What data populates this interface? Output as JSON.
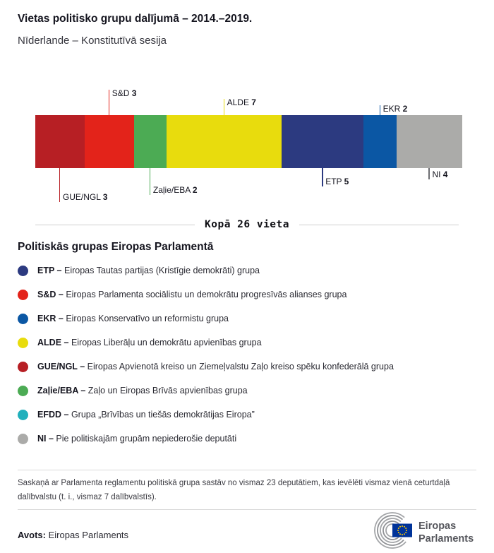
{
  "header": {
    "title": "Vietas politisko grupu dalījumā – 2014.–2019.",
    "subtitle": "Nīderlande – Konstitutīvā sesija"
  },
  "chart_data": {
    "type": "bar",
    "subtype": "horizontal-stacked-seats",
    "title": "Vietas politisko grupu dalījumā – 2014.–2019.",
    "total_seats": 26,
    "total_label": "Kopā 26 vieta",
    "segments": [
      {
        "group": "GUE/NGL",
        "seats": 3,
        "color": "#b71f24",
        "callout": "below"
      },
      {
        "group": "S&D",
        "seats": 3,
        "color": "#e3231a",
        "callout": "above"
      },
      {
        "group": "Zaļie/EBA",
        "seats": 2,
        "color": "#4cab54",
        "callout": "below"
      },
      {
        "group": "ALDE",
        "seats": 7,
        "color": "#e8dc0d",
        "callout": "above"
      },
      {
        "group": "ETP",
        "seats": 5,
        "color": "#2c3a80",
        "callout": "below"
      },
      {
        "group": "EKR",
        "seats": 2,
        "color": "#0b57a4",
        "callout": "above"
      },
      {
        "group": "NI",
        "seats": 4,
        "color": "#ababa9",
        "callout": "below"
      }
    ]
  },
  "legend": {
    "heading": "Politiskās grupas Eiropas Parlamentā",
    "items": [
      {
        "abbr": "ETP –",
        "description": "Eiropas Tautas partijas (Kristīgie demokrāti) grupa",
        "color": "#2c3a80"
      },
      {
        "abbr": "S&D –",
        "description": "Eiropas Parlamenta sociālistu un demokrātu progresīvās alianses grupa",
        "color": "#e3231a"
      },
      {
        "abbr": "EKR –",
        "description": "Eiropas Konservatīvo un reformistu grupa",
        "color": "#0b57a4"
      },
      {
        "abbr": "ALDE –",
        "description": "Eiropas Liberāļu un demokrātu apvienības grupa",
        "color": "#e8dc0d"
      },
      {
        "abbr": "GUE/NGL –",
        "description": "Eiropas Apvienotā kreiso un Ziemeļvalstu Zaļo kreiso spēku konfederālā grupa",
        "color": "#b71f24"
      },
      {
        "abbr": "Zaļie/EBA –",
        "description": "Zaļo un Eiropas Brīvās apvienības grupa",
        "color": "#4cab54"
      },
      {
        "abbr": "EFDD –",
        "description": "Grupa „Brīvības un tiešās demokrātijas Eiropa”",
        "color": "#21b0bc"
      },
      {
        "abbr": "NI –",
        "description": "Pie politiskajām grupām nepiederošie deputāti",
        "color": "#ababa9"
      }
    ]
  },
  "footer": {
    "note": "Saskaņā ar Parlamenta reglamentu politiskā grupa sastāv no vismaz 23 deputātiem, kas ievēlēti vismaz vienā ceturtdaļā dalībvalstu (t. i., vismaz 7 dalībvalstīs).",
    "source_label": "Avots:",
    "source_value": "Eiropas Parlaments",
    "logo": {
      "line1": "Eiropas",
      "line2": "Parlaments"
    }
  }
}
